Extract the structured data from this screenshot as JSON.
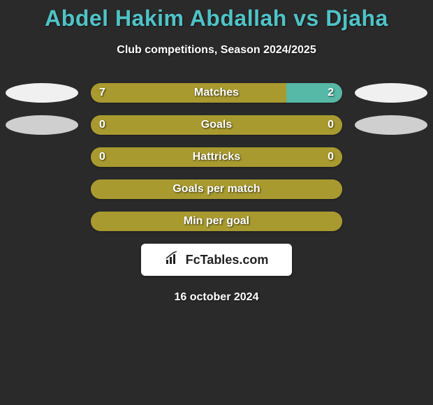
{
  "title": "Abdel Hakim Abdallah vs Djaha",
  "subtitle": "Club competitions, Season 2024/2025",
  "date": "16 october 2024",
  "logo_text": "FcTables.com",
  "colors": {
    "background": "#2a2a2a",
    "title": "#4fc3c7",
    "bar_olive": "#a89a2f",
    "bar_teal": "#56b8a7",
    "ellipse_white": "#f0f0f0",
    "ellipse_grey": "#cfcfcf",
    "text_white": "#ffffff"
  },
  "rows": [
    {
      "label": "Matches",
      "left_val": "7",
      "right_val": "2",
      "left_pct": 77.8,
      "right_pct": 22.2,
      "left_color": "#a89a2f",
      "right_color": "#56b8a7",
      "left_ellipse_color": "#f0f0f0",
      "right_ellipse_color": "#f0f0f0",
      "has_ellipses": true
    },
    {
      "label": "Goals",
      "left_val": "0",
      "right_val": "0",
      "left_pct": 50,
      "right_pct": 50,
      "left_color": "#a89a2f",
      "right_color": "#a89a2f",
      "left_ellipse_color": "#cfcfcf",
      "right_ellipse_color": "#cfcfcf",
      "has_ellipses": true
    },
    {
      "label": "Hattricks",
      "left_val": "0",
      "right_val": "0",
      "left_pct": 50,
      "right_pct": 50,
      "left_color": "#a89a2f",
      "right_color": "#a89a2f",
      "has_ellipses": false
    },
    {
      "label": "Goals per match",
      "left_val": "",
      "right_val": "",
      "left_pct": 100,
      "right_pct": 0,
      "left_color": "#a89a2f",
      "right_color": "#a89a2f",
      "has_ellipses": false
    },
    {
      "label": "Min per goal",
      "left_val": "",
      "right_val": "",
      "left_pct": 100,
      "right_pct": 0,
      "left_color": "#a89a2f",
      "right_color": "#a89a2f",
      "has_ellipses": false
    }
  ]
}
